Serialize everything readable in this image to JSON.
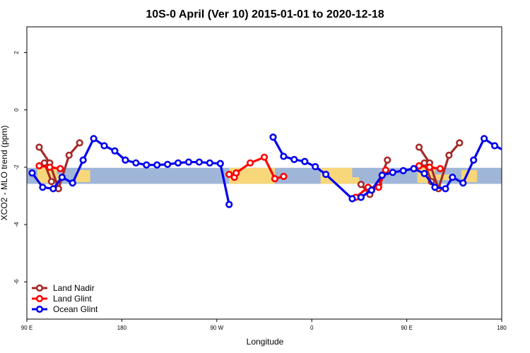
{
  "chart_data": {
    "type": "line",
    "title": "10S-0 April (Ver 10)   2015-01-01 to 2020-12-18",
    "xlabel": "Longitude",
    "ylabel": "XCO2 - MLO trend (ppm)",
    "xlim": [
      -90,
      180
    ],
    "ylim": [
      -7.3,
      2.9
    ],
    "x_ticks": [
      {
        "value": -90,
        "label": "90 E"
      },
      {
        "value": -36,
        "label": "180"
      },
      {
        "value": 18,
        "label": "90 W"
      },
      {
        "value": 72,
        "label": "0"
      },
      {
        "value": 126,
        "label": "90 E"
      },
      {
        "value": 180,
        "label": "180"
      }
    ],
    "y_ticks": [
      {
        "value": 2,
        "label": "2"
      },
      {
        "value": 0,
        "label": "0"
      },
      {
        "value": -2,
        "label": "-2"
      },
      {
        "value": -4,
        "label": "-4"
      },
      {
        "value": -6,
        "label": "-6"
      }
    ],
    "band": {
      "y0": -2.58,
      "y1": -2.02,
      "color": "#9fb6d8"
    },
    "land_color": "#f7d77a",
    "land_regions": [
      {
        "x0": -84,
        "x1": -73,
        "y0": -2.55,
        "y1": -2.02
      },
      {
        "x0": -80,
        "x1": -69,
        "y0": -2.45,
        "y1": -2.25
      },
      {
        "x0": -62,
        "x1": -54,
        "y0": -2.52,
        "y1": -2.1
      },
      {
        "x0": 25,
        "x1": 51,
        "y0": -2.58,
        "y1": -2.02
      },
      {
        "x0": 77,
        "x1": 95,
        "y0": -2.58,
        "y1": -2.02
      },
      {
        "x0": 95,
        "x1": 99,
        "y0": -2.58,
        "y1": -2.35
      },
      {
        "x0": 132,
        "x1": 142,
        "y0": -2.55,
        "y1": -2.02
      },
      {
        "x0": 137,
        "x1": 152,
        "y0": -2.45,
        "y1": -2.25
      },
      {
        "x0": 157,
        "x1": 166,
        "y0": -2.52,
        "y1": -2.1
      }
    ],
    "series": [
      {
        "name": "Land Nadir",
        "color": "#a52a2a",
        "segments": [
          [
            [
              -83,
              -1.3
            ],
            [
              -77,
              -1.85
            ],
            [
              -72,
              -2.75
            ],
            [
              -66,
              -1.58
            ],
            [
              -60,
              -1.15
            ]
          ],
          [
            [
              -80,
              -1.85
            ],
            [
              -76,
              -2.5
            ]
          ],
          [
            [
              100,
              -2.6
            ],
            [
              105,
              -2.95
            ],
            [
              110,
              -2.6
            ],
            [
              115,
              -1.75
            ]
          ],
          [
            [
              133,
              -1.3
            ],
            [
              139,
              -1.85
            ],
            [
              144,
              -2.75
            ],
            [
              150,
              -1.58
            ],
            [
              156,
              -1.15
            ]
          ],
          [
            [
              136,
              -1.85
            ],
            [
              140,
              -2.5
            ]
          ]
        ]
      },
      {
        "name": "Land Glint",
        "color": "#ff0000",
        "segments": [
          [
            [
              -83,
              -1.95
            ],
            [
              -77,
              -2.0
            ],
            [
              -71,
              -2.05
            ]
          ],
          [
            [
              25,
              -2.25
            ],
            [
              28,
              -2.35
            ],
            [
              29,
              -2.2
            ],
            [
              37,
              -1.85
            ],
            [
              45,
              -1.65
            ],
            [
              51,
              -2.4
            ],
            [
              56,
              -2.32
            ]
          ],
          [
            [
              97,
              -3.05
            ],
            [
              104,
              -2.7
            ],
            [
              110,
              -2.7
            ],
            [
              114,
              -2.1
            ]
          ],
          [
            [
              133,
              -1.95
            ],
            [
              139,
              -2.0
            ],
            [
              145,
              -2.05
            ]
          ]
        ]
      },
      {
        "name": "Ocean Glint",
        "color": "#0000ee",
        "segments": [
          [
            [
              -87,
              -2.2
            ],
            [
              -81,
              -2.7
            ],
            [
              -75,
              -2.75
            ],
            [
              -70,
              -2.35
            ],
            [
              -64,
              -2.55
            ],
            [
              -58,
              -1.75
            ],
            [
              -52,
              -1.0
            ],
            [
              -46,
              -1.25
            ],
            [
              -40,
              -1.43
            ],
            [
              -34,
              -1.75
            ],
            [
              -28,
              -1.85
            ],
            [
              -22,
              -1.92
            ],
            [
              -16,
              -1.92
            ],
            [
              -10,
              -1.9
            ],
            [
              -4,
              -1.85
            ],
            [
              2,
              -1.82
            ],
            [
              8,
              -1.82
            ],
            [
              14,
              -1.85
            ],
            [
              20,
              -1.87
            ],
            [
              25,
              -3.3
            ]
          ],
          [
            [
              50,
              -0.95
            ],
            [
              56,
              -1.62
            ],
            [
              62,
              -1.73
            ],
            [
              68,
              -1.8
            ],
            [
              74,
              -1.98
            ],
            [
              80,
              -2.25
            ],
            [
              95,
              -3.1
            ]
          ],
          [
            [
              100,
              -3.05
            ],
            [
              106,
              -2.8
            ],
            [
              112,
              -2.28
            ],
            [
              118,
              -2.18
            ],
            [
              124,
              -2.12
            ],
            [
              130,
              -2.05
            ],
            [
              136,
              -2.22
            ],
            [
              142,
              -2.7
            ],
            [
              148,
              -2.75
            ],
            [
              152,
              -2.35
            ],
            [
              158,
              -2.55
            ],
            [
              164,
              -1.75
            ],
            [
              170,
              -1.0
            ],
            [
              176,
              -1.25
            ],
            [
              182,
              -1.43
            ]
          ]
        ]
      }
    ],
    "legend": {
      "position": "bottom-left",
      "entries": [
        "Land Nadir",
        "Land Glint",
        "Ocean Glint"
      ]
    },
    "grid": false
  }
}
